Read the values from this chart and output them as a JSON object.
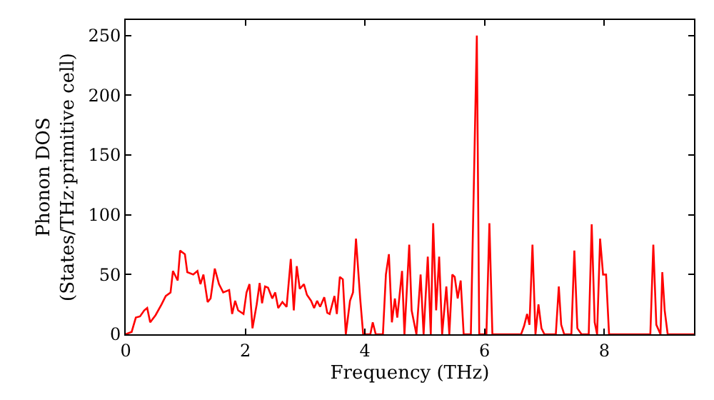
{
  "chart_data": {
    "type": "line",
    "xlabel": "Frequency (THz)",
    "ylabel": "Phonon DOS\n(States/THz·primitive cell)",
    "xlim": [
      0,
      9.5
    ],
    "ylim": [
      0,
      263
    ],
    "xticks": [
      0,
      2,
      4,
      6,
      8
    ],
    "yticks": [
      0,
      50,
      100,
      150,
      200,
      250
    ],
    "marker": "none",
    "line_style": "solid",
    "series": [
      {
        "color": "#ff0000",
        "x": [
          0,
          0.1,
          0.17,
          0.24,
          0.31,
          0.36,
          0.41,
          0.5,
          0.6,
          0.67,
          0.75,
          0.79,
          0.87,
          0.91,
          0.99,
          1.03,
          1.13,
          1.2,
          1.25,
          1.3,
          1.37,
          1.42,
          1.49,
          1.56,
          1.63,
          1.73,
          1.78,
          1.83,
          1.88,
          1.97,
          2.02,
          2.07,
          2.12,
          2.19,
          2.24,
          2.28,
          2.33,
          2.38,
          2.45,
          2.5,
          2.55,
          2.62,
          2.69,
          2.76,
          2.81,
          2.86,
          2.91,
          2.98,
          3.03,
          3.1,
          3.15,
          3.2,
          3.25,
          3.32,
          3.37,
          3.41,
          3.49,
          3.53,
          3.58,
          3.63,
          3.68,
          3.75,
          3.8,
          3.85,
          3.92,
          3.97,
          4.09,
          4.13,
          4.18,
          4.3,
          4.35,
          4.4,
          4.45,
          4.5,
          4.54,
          4.62,
          4.66,
          4.74,
          4.78,
          4.86,
          4.93,
          4.98,
          5.05,
          5.1,
          5.14,
          5.19,
          5.24,
          5.29,
          5.36,
          5.41,
          5.46,
          5.5,
          5.55,
          5.6,
          5.65,
          5.77,
          5.87,
          5.91,
          5.96,
          6.03,
          6.08,
          6.13,
          6.61,
          6.66,
          6.71,
          6.75,
          6.8,
          6.85,
          6.9,
          6.95,
          7.0,
          7.19,
          7.24,
          7.28,
          7.33,
          7.45,
          7.5,
          7.55,
          7.62,
          7.74,
          7.79,
          7.84,
          7.88,
          7.93,
          7.98,
          8.03,
          8.08,
          8.77,
          8.82,
          8.87,
          8.94,
          8.97,
          9.01,
          9.06,
          9.5
        ],
        "values": [
          0,
          2,
          14,
          15,
          20,
          22,
          10,
          16,
          25,
          32,
          35,
          53,
          45,
          70,
          67,
          52,
          50,
          53,
          42,
          50,
          27,
          30,
          55,
          42,
          35,
          37,
          17,
          28,
          20,
          17,
          35,
          42,
          5,
          25,
          43,
          26,
          40,
          39,
          30,
          35,
          22,
          27,
          23,
          63,
          20,
          57,
          38,
          42,
          33,
          28,
          22,
          28,
          23,
          31,
          18,
          17,
          32,
          17,
          48,
          46,
          0,
          28,
          35,
          80,
          30,
          0,
          0,
          10,
          0,
          0,
          50,
          67,
          10,
          30,
          14,
          53,
          0,
          75,
          20,
          0,
          50,
          0,
          65,
          0,
          93,
          20,
          65,
          0,
          40,
          0,
          50,
          48,
          30,
          45,
          0,
          0,
          250,
          0,
          0,
          0,
          93,
          0,
          0,
          7,
          17,
          8,
          75,
          0,
          25,
          5,
          0,
          0,
          40,
          8,
          0,
          0,
          70,
          5,
          0,
          0,
          92,
          10,
          0,
          80,
          50,
          50,
          0,
          0,
          75,
          8,
          0,
          52,
          20,
          0,
          0
        ]
      }
    ]
  }
}
